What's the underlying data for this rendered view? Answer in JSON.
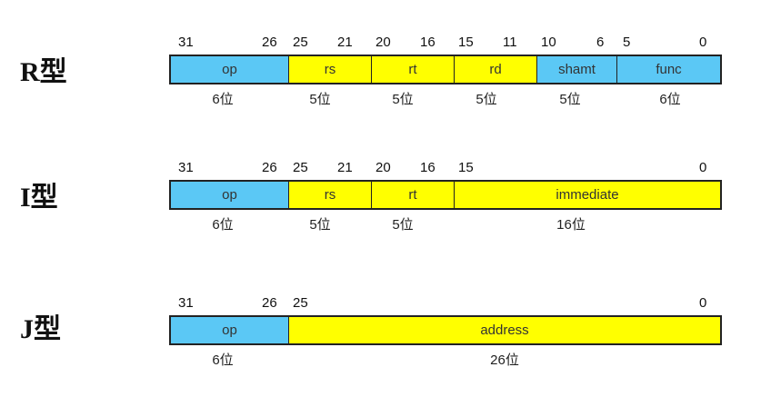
{
  "colors": {
    "blue": "#5bc8f5",
    "yellow": "#ffff00",
    "border": "#222222"
  },
  "formats": [
    {
      "label": "R型",
      "bits": [
        "31",
        "26",
        "25",
        "21",
        "20",
        "16",
        "15",
        "11",
        "10",
        "6",
        "5",
        "0"
      ],
      "fields": [
        {
          "name": "op",
          "color": "blue"
        },
        {
          "name": "rs",
          "color": "yellow"
        },
        {
          "name": "rt",
          "color": "yellow"
        },
        {
          "name": "rd",
          "color": "yellow"
        },
        {
          "name": "shamt",
          "color": "blue"
        },
        {
          "name": "func",
          "color": "blue"
        }
      ],
      "widths": [
        "6位",
        "5位",
        "5位",
        "5位",
        "5位",
        "6位"
      ]
    },
    {
      "label": "I型",
      "bits": [
        "31",
        "26",
        "25",
        "21",
        "20",
        "16",
        "15",
        "0"
      ],
      "fields": [
        {
          "name": "op",
          "color": "blue"
        },
        {
          "name": "rs",
          "color": "yellow"
        },
        {
          "name": "rt",
          "color": "yellow"
        },
        {
          "name": "immediate",
          "color": "yellow"
        }
      ],
      "widths": [
        "6位",
        "5位",
        "5位",
        "16位"
      ]
    },
    {
      "label": "J型",
      "bits": [
        "31",
        "26",
        "25",
        "0"
      ],
      "fields": [
        {
          "name": "op",
          "color": "blue"
        },
        {
          "name": "address",
          "color": "yellow"
        }
      ],
      "widths": [
        "6位",
        "26位"
      ]
    }
  ]
}
